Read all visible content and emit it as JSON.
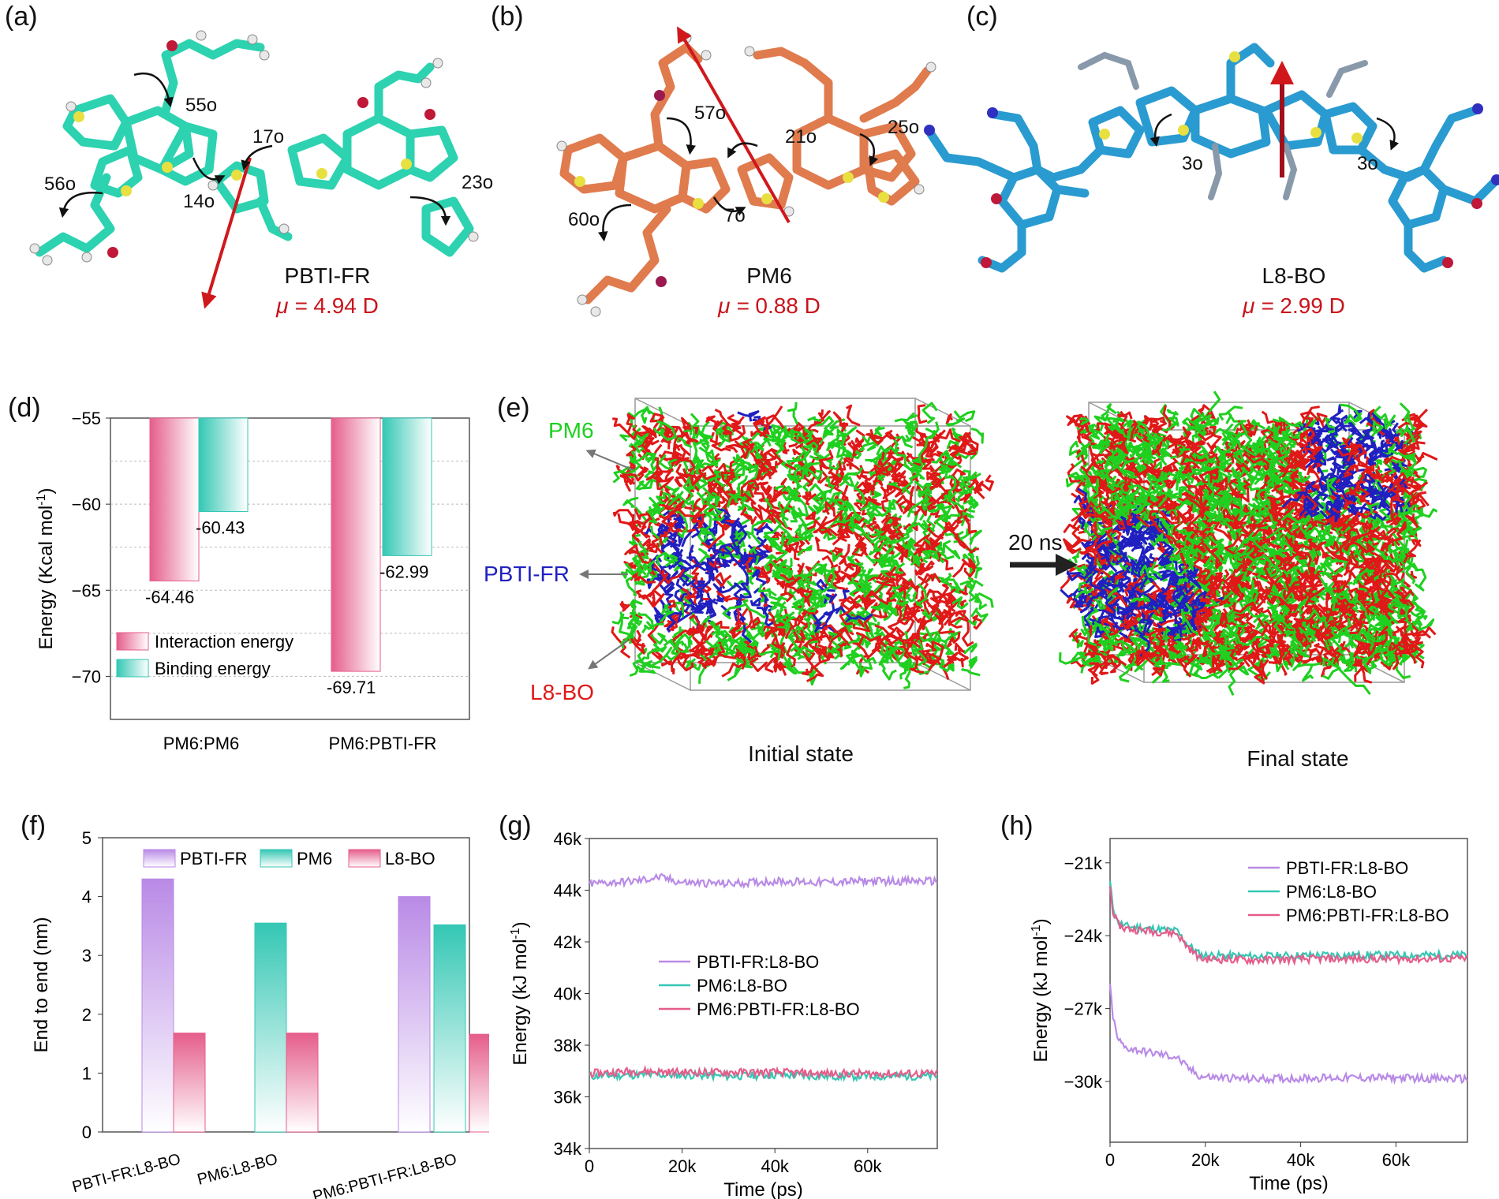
{
  "panels": {
    "a": {
      "letter": "(a)",
      "molecule": "PBTI-FR",
      "mu": "4.94 D",
      "angles": [
        "55o",
        "17o",
        "56o",
        "14o",
        "23o"
      ]
    },
    "b": {
      "letter": "(b)",
      "molecule": "PM6",
      "mu": "0.88 D",
      "angles": [
        "57o",
        "21o",
        "25o",
        "60o",
        "7o"
      ]
    },
    "c": {
      "letter": "(c)",
      "molecule": "L8-BO",
      "mu": "2.99 D",
      "angles": [
        "3o",
        "3o"
      ]
    },
    "e": {
      "letter": "(e)",
      "labels": [
        "PM6",
        "PBTI-FR",
        "L8-BO"
      ],
      "arrow_text": "20 ns",
      "initial": "Initial state",
      "final": "Final state"
    }
  },
  "mu_symbol": "μ = ",
  "colors": {
    "pbti": "#2dd2b0",
    "pm6": "#e07b4e",
    "l8": "#2a9bd0",
    "md_red": "#e01818",
    "md_green": "#1fd01f",
    "md_blue": "#2020c0",
    "dipole": "#d0181c",
    "pink": "#e55d8b",
    "teal": "#34c7b4",
    "violet": "#b98ae6"
  },
  "chart_data": [
    {
      "panel": "(d)",
      "type": "bar",
      "categories": [
        "PM6:PM6",
        "PM6:PBTI-FR"
      ],
      "series": [
        {
          "name": "Interaction energy",
          "values": [
            -64.46,
            -69.71
          ]
        },
        {
          "name": "Binding energy",
          "values": [
            -60.43,
            -62.99
          ]
        }
      ],
      "data_labels": [
        "-64.46",
        "-60.43",
        "-69.71",
        "-62.99"
      ],
      "ylabel": "Energy (Kcal mol-1)",
      "ylim": [
        -72.5,
        -55
      ],
      "yticks": [
        -55,
        -60,
        -65,
        -70
      ],
      "ytick_labels": [
        "−55",
        "−60",
        "−65",
        "−70"
      ],
      "legend": "lower-left"
    },
    {
      "panel": "(f)",
      "type": "bar",
      "categories": [
        "PBTI-FR:L8-BO",
        "PM6:L8-BO",
        "PM6:PBTI-FR:L8-BO"
      ],
      "series": [
        {
          "name": "PBTI-FR",
          "values": [
            4.3,
            null,
            4.0
          ]
        },
        {
          "name": "PM6",
          "values": [
            null,
            3.55,
            3.52
          ]
        },
        {
          "name": "L8-BO",
          "values": [
            1.68,
            1.68,
            1.66
          ]
        }
      ],
      "ylabel": "End to end (nm)",
      "ylim": [
        0,
        5
      ],
      "yticks": [
        0,
        1,
        2,
        3,
        4,
        5
      ],
      "legend": "top"
    },
    {
      "panel": "(g)",
      "type": "line",
      "xlabel": "Time (ps)",
      "ylabel": "Energy (kJ mol-1)",
      "xlim": [
        0,
        75000
      ],
      "ylim": [
        34000,
        46000
      ],
      "xticks": [
        0,
        20000,
        40000,
        60000
      ],
      "xtick_labels": [
        "0",
        "20k",
        "40k",
        "60k"
      ],
      "yticks": [
        34000,
        36000,
        38000,
        40000,
        42000,
        44000,
        46000
      ],
      "ytick_labels": [
        "34k",
        "36k",
        "38k",
        "40k",
        "42k",
        "44k",
        "46k"
      ],
      "series": [
        {
          "name": "PBTI-FR:L8-BO",
          "x": [
            0,
            10000,
            15000,
            20000,
            30000,
            40000,
            50000,
            60000,
            75000
          ],
          "y": [
            44250,
            44350,
            44500,
            44300,
            44250,
            44350,
            44300,
            44350,
            44350
          ]
        },
        {
          "name": "PM6:L8-BO",
          "x": [
            0,
            10000,
            20000,
            30000,
            40000,
            50000,
            60000,
            75000
          ],
          "y": [
            36800,
            36850,
            36850,
            36800,
            36850,
            36800,
            36800,
            36800
          ]
        },
        {
          "name": "PM6:PBTI-FR:L8-BO",
          "x": [
            0,
            10000,
            20000,
            30000,
            40000,
            50000,
            60000,
            75000
          ],
          "y": [
            36900,
            37000,
            36950,
            36950,
            36950,
            36900,
            36900,
            36900
          ]
        }
      ],
      "legend": "center"
    },
    {
      "panel": "(h)",
      "type": "line",
      "xlabel": "Time (ps)",
      "ylabel": "Energy (kJ mol-1)",
      "xlim": [
        0,
        75000
      ],
      "ylim": [
        -32500,
        -20000
      ],
      "xticks": [
        0,
        20000,
        40000,
        60000
      ],
      "xtick_labels": [
        "0",
        "20k",
        "40k",
        "60k"
      ],
      "yticks": [
        -21000,
        -24000,
        -27000,
        -30000
      ],
      "ytick_labels": [
        "−21k",
        "−24k",
        "−27k",
        "−30k"
      ],
      "series": [
        {
          "name": "PBTI-FR:L8-BO",
          "x": [
            0,
            500,
            1500,
            3000,
            8000,
            14000,
            16000,
            19000,
            30000,
            45000,
            60000,
            75000
          ],
          "y": [
            -26000,
            -27200,
            -28200,
            -28600,
            -28800,
            -29000,
            -29400,
            -29800,
            -29900,
            -29850,
            -29850,
            -29900
          ]
        },
        {
          "name": "PM6:L8-BO",
          "x": [
            0,
            500,
            1500,
            3000,
            8000,
            14000,
            16000,
            19000,
            30000,
            45000,
            60000,
            75000
          ],
          "y": [
            -21800,
            -22700,
            -23400,
            -23600,
            -23700,
            -23800,
            -24300,
            -24800,
            -24850,
            -24800,
            -24800,
            -24800
          ]
        },
        {
          "name": "PM6:PBTI-FR:L8-BO",
          "x": [
            0,
            500,
            1500,
            3000,
            8000,
            14000,
            16000,
            19000,
            30000,
            45000,
            60000,
            75000
          ],
          "y": [
            -22000,
            -22900,
            -23500,
            -23700,
            -23800,
            -23900,
            -24400,
            -24950,
            -25000,
            -24950,
            -24950,
            -24950
          ]
        }
      ],
      "legend": "top-right"
    }
  ]
}
